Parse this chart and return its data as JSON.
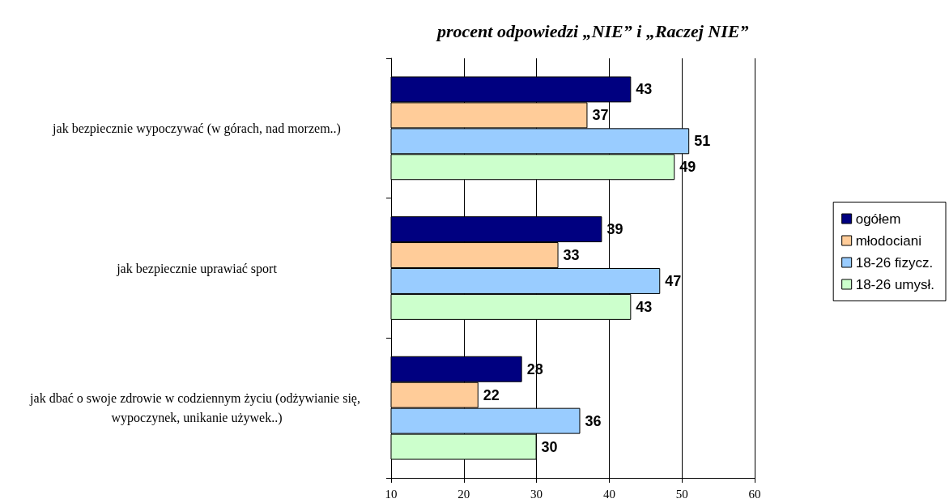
{
  "chart_data": {
    "type": "bar",
    "orientation": "horizontal",
    "title": "procent odpowiedzi „NIE” i „Raczej NIE”",
    "categories": [
      "jak bezpiecznie wypoczywać (w górach, nad morzem..)",
      "jak bezpiecznie uprawiać sport",
      "jak dbać o swoje zdrowie w codziennym życiu (odżywianie się, wypoczynek, unikanie używek..)"
    ],
    "series": [
      {
        "name": "ogółem",
        "color": "#000080",
        "values": [
          43,
          39,
          28
        ]
      },
      {
        "name": "młodociani",
        "color": "#ffcc99",
        "values": [
          37,
          33,
          22
        ]
      },
      {
        "name": "18-26 fizycz.",
        "color": "#99ccff",
        "values": [
          51,
          47,
          36
        ]
      },
      {
        "name": "18-26 umysł.",
        "color": "#ccffcc",
        "values": [
          49,
          43,
          30
        ]
      }
    ],
    "xlim": [
      10,
      60
    ],
    "xticks": [
      10,
      20,
      30,
      40,
      50,
      60
    ],
    "grid": "x",
    "legend": "right",
    "data_labels": true
  }
}
